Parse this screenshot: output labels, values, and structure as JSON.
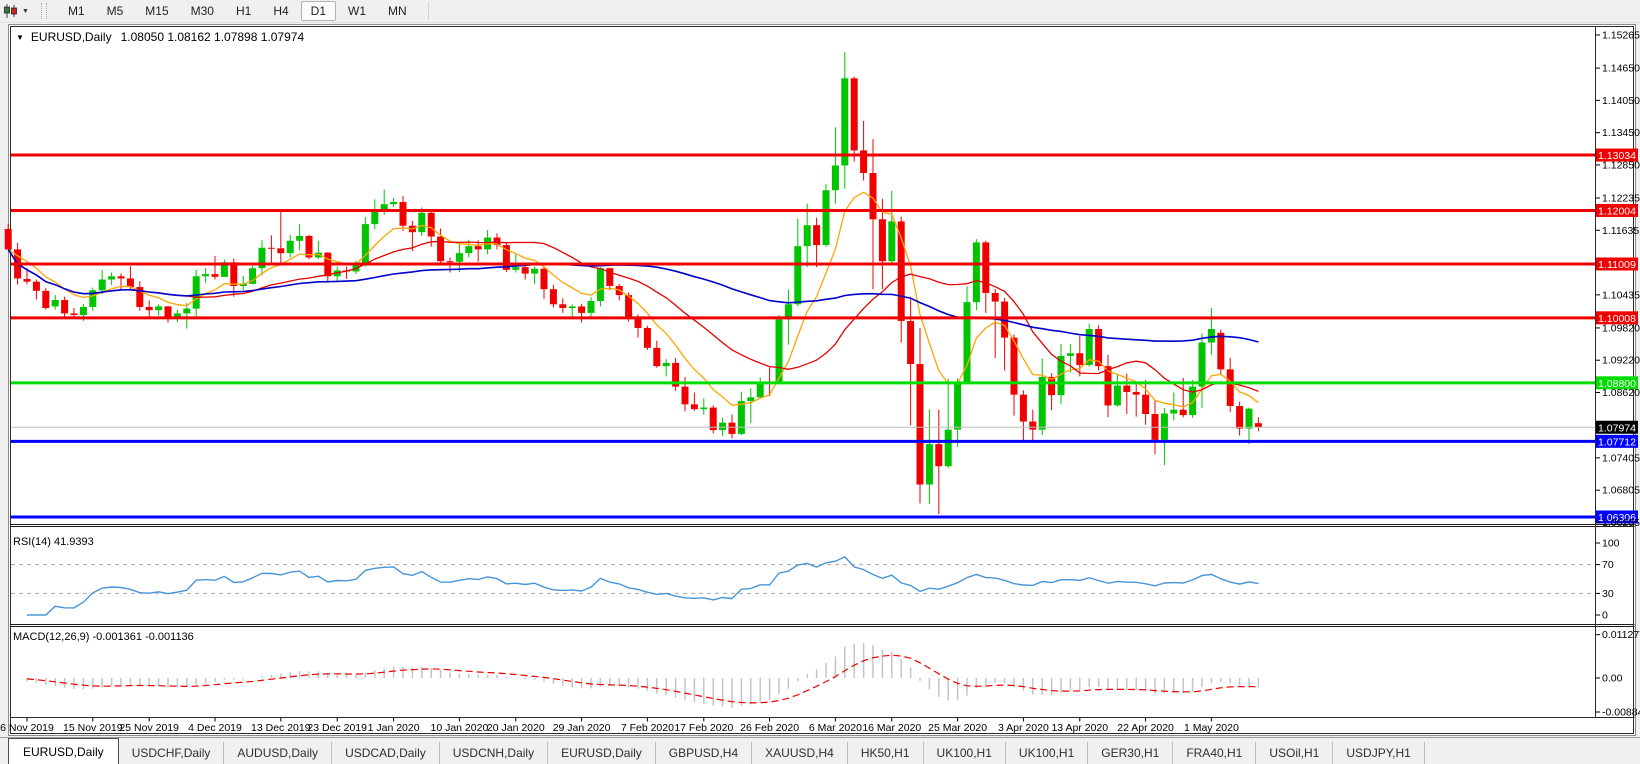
{
  "toolbar": {
    "timeframes": [
      "M1",
      "M5",
      "M15",
      "M30",
      "H1",
      "H4",
      "D1",
      "W1",
      "MN"
    ],
    "active_timeframe": "D1"
  },
  "window": {
    "symbol_period": "EURUSD,Daily",
    "ohlc_text": "1.08050 1.08162 1.07898 1.07974"
  },
  "chart_data": {
    "type": "candlestick",
    "symbol": "EURUSD",
    "timeframe": "Daily",
    "up_color": "#00C400",
    "down_color": "#F00000",
    "ylim": [
      1.06205,
      1.15265
    ],
    "y_ticks": [
      "1.15265",
      "1.14650",
      "1.14050",
      "1.13450",
      "1.12850",
      "1.12235",
      "1.11635",
      "1.10435",
      "1.09820",
      "1.09220",
      "1.08620",
      "1.07405",
      "1.06805",
      "1.06205"
    ],
    "price_levels": [
      {
        "price": 1.13034,
        "label": "1.13034",
        "color": "#F00000",
        "width": 3,
        "kind": "resistance"
      },
      {
        "price": 1.12004,
        "label": "1.12004",
        "color": "#F00000",
        "width": 3,
        "kind": "resistance"
      },
      {
        "price": 1.11009,
        "label": "1.11009",
        "color": "#F00000",
        "width": 3,
        "kind": "resistance"
      },
      {
        "price": 1.10008,
        "label": "1.10008",
        "color": "#F00000",
        "width": 3,
        "kind": "resistance"
      },
      {
        "price": 1.088,
        "label": "1.08800",
        "color": "#00DD00",
        "width": 3,
        "kind": "pivot"
      },
      {
        "price": 1.07712,
        "label": "1.07712",
        "color": "#0000FF",
        "width": 3,
        "kind": "support"
      },
      {
        "price": 1.06306,
        "label": "1.06306",
        "color": "#0000FF",
        "width": 3,
        "kind": "support"
      }
    ],
    "current_price": {
      "price": 1.07974,
      "label": "1.07974",
      "box_color": "#000000",
      "line_color": "#BDBDBD"
    },
    "moving_averages": [
      {
        "name": "fast",
        "method": "ema",
        "period": 8,
        "color": "#FFA500"
      },
      {
        "name": "medium",
        "method": "sma",
        "period": 20,
        "color": "#E60000"
      },
      {
        "name": "slow",
        "method": "sma",
        "period": 50,
        "color": "#0000CC"
      }
    ],
    "x_labels": [
      [
        "6 Nov 2019",
        2
      ],
      [
        "15 Nov 2019",
        9
      ],
      [
        "25 Nov 2019",
        15
      ],
      [
        "4 Dec 2019",
        22
      ],
      [
        "13 Dec 2019",
        29
      ],
      [
        "23 Dec 2019",
        35
      ],
      [
        "1 Jan 2020",
        41
      ],
      [
        "10 Jan 2020",
        48
      ],
      [
        "20 Jan 2020",
        54
      ],
      [
        "29 Jan 2020",
        61
      ],
      [
        "7 Feb 2020",
        68
      ],
      [
        "17 Feb 2020",
        74
      ],
      [
        "26 Feb 2020",
        81
      ],
      [
        "6 Mar 2020",
        88
      ],
      [
        "16 Mar 2020",
        94
      ],
      [
        "25 Mar 2020",
        101
      ],
      [
        "3 Apr 2020",
        108
      ],
      [
        "13 Apr 2020",
        114
      ],
      [
        "22 Apr 2020",
        121
      ],
      [
        "1 May 2020",
        128
      ]
    ],
    "candles": [
      [
        1.1166,
        1.1175,
        1.1128,
        1.1128
      ],
      [
        1.1128,
        1.114,
        1.1063,
        1.1074
      ],
      [
        1.1073,
        1.1093,
        1.1063,
        1.1068
      ],
      [
        1.1068,
        1.1072,
        1.1035,
        1.1051
      ],
      [
        1.1051,
        1.1056,
        1.1016,
        1.1019
      ],
      [
        1.1022,
        1.1043,
        1.1016,
        1.1034
      ],
      [
        1.1034,
        1.104,
        1.1002,
        1.1009
      ],
      [
        1.1009,
        1.1019,
        1.1,
        1.1006
      ],
      [
        1.1006,
        1.1027,
        1.0995,
        1.1021
      ],
      [
        1.1021,
        1.1057,
        1.1014,
        1.1052
      ],
      [
        1.1052,
        1.109,
        1.1045,
        1.1072
      ],
      [
        1.1072,
        1.1085,
        1.1062,
        1.1078
      ],
      [
        1.1078,
        1.1083,
        1.1052,
        1.1074
      ],
      [
        1.1074,
        1.1097,
        1.1052,
        1.1058
      ],
      [
        1.1058,
        1.1069,
        1.1014,
        1.1021
      ],
      [
        1.1021,
        1.1033,
        1.1003,
        1.1015
      ],
      [
        1.1015,
        1.1026,
        1.1005,
        1.1022
      ],
      [
        1.1022,
        1.1023,
        1.0992,
        1.1001
      ],
      [
        1.1001,
        1.1016,
        1.0993,
        1.1009
      ],
      [
        1.1009,
        1.1028,
        1.0981,
        1.1018
      ],
      [
        1.1018,
        1.109,
        1.1003,
        1.1078
      ],
      [
        1.1078,
        1.1093,
        1.1066,
        1.1082
      ],
      [
        1.1082,
        1.1116,
        1.1072,
        1.1077
      ],
      [
        1.1077,
        1.1109,
        1.1077,
        1.1104
      ],
      [
        1.1104,
        1.1111,
        1.104,
        1.106
      ],
      [
        1.106,
        1.1079,
        1.1052,
        1.1064
      ],
      [
        1.1064,
        1.1097,
        1.1063,
        1.1093
      ],
      [
        1.1093,
        1.1145,
        1.108,
        1.1131
      ],
      [
        1.1131,
        1.1154,
        1.1102,
        1.113
      ],
      [
        1.113,
        1.1199,
        1.1103,
        1.1121
      ],
      [
        1.1121,
        1.1155,
        1.1113,
        1.1144
      ],
      [
        1.1144,
        1.1175,
        1.1127,
        1.1153
      ],
      [
        1.1153,
        1.1155,
        1.111,
        1.1113
      ],
      [
        1.1113,
        1.1144,
        1.111,
        1.1122
      ],
      [
        1.1122,
        1.1123,
        1.1066,
        1.1078
      ],
      [
        1.1078,
        1.1096,
        1.1069,
        1.1089
      ],
      [
        1.1089,
        1.1096,
        1.1073,
        1.1087
      ],
      [
        1.1087,
        1.1107,
        1.1082,
        1.1098
      ],
      [
        1.1098,
        1.1188,
        1.1096,
        1.1175
      ],
      [
        1.1175,
        1.1221,
        1.1165,
        1.1199
      ],
      [
        1.1199,
        1.1239,
        1.1192,
        1.1212
      ],
      [
        1.1212,
        1.1224,
        1.1207,
        1.1216
      ],
      [
        1.1216,
        1.1227,
        1.1162,
        1.1172
      ],
      [
        1.1172,
        1.1181,
        1.1125,
        1.116
      ],
      [
        1.116,
        1.1206,
        1.1153,
        1.1196
      ],
      [
        1.1196,
        1.1199,
        1.1133,
        1.1152
      ],
      [
        1.1152,
        1.1167,
        1.1103,
        1.1106
      ],
      [
        1.1106,
        1.1113,
        1.1085,
        1.1105
      ],
      [
        1.1105,
        1.114,
        1.1086,
        1.1121
      ],
      [
        1.1121,
        1.1146,
        1.1113,
        1.1134
      ],
      [
        1.1134,
        1.1145,
        1.1105,
        1.1128
      ],
      [
        1.1128,
        1.1164,
        1.1119,
        1.115
      ],
      [
        1.115,
        1.1158,
        1.1128,
        1.1136
      ],
      [
        1.1136,
        1.1141,
        1.1086,
        1.109
      ],
      [
        1.109,
        1.1119,
        1.1085,
        1.1095
      ],
      [
        1.1095,
        1.1101,
        1.1072,
        1.1083
      ],
      [
        1.1083,
        1.1096,
        1.1064,
        1.1092
      ],
      [
        1.1092,
        1.1096,
        1.1036,
        1.1054
      ],
      [
        1.1054,
        1.1062,
        1.102,
        1.1026
      ],
      [
        1.1026,
        1.1037,
        1.101,
        1.1019
      ],
      [
        1.1019,
        1.1026,
        1.0998,
        1.1022
      ],
      [
        1.1022,
        1.1027,
        1.0992,
        1.101
      ],
      [
        1.101,
        1.1039,
        1.1003,
        1.1032
      ],
      [
        1.1032,
        1.1095,
        1.1022,
        1.1093
      ],
      [
        1.1093,
        1.1094,
        1.1052,
        1.106
      ],
      [
        1.106,
        1.1064,
        1.1033,
        1.1043
      ],
      [
        1.1043,
        1.1048,
        1.0994,
        1.1
      ],
      [
        1.1,
        1.1007,
        1.0964,
        1.0982
      ],
      [
        1.0982,
        1.0986,
        1.0941,
        1.0945
      ],
      [
        1.0945,
        1.0958,
        1.0908,
        1.0911
      ],
      [
        1.0911,
        1.0924,
        1.0892,
        1.0917
      ],
      [
        1.0917,
        1.0926,
        1.0865,
        1.0873
      ],
      [
        1.0873,
        1.0891,
        1.0827,
        1.084
      ],
      [
        1.084,
        1.0862,
        1.0828,
        1.0831
      ],
      [
        1.0831,
        1.0851,
        1.0821,
        1.0834
      ],
      [
        1.0834,
        1.0838,
        1.0786,
        1.0792
      ],
      [
        1.0792,
        1.0815,
        1.0781,
        1.0806
      ],
      [
        1.0806,
        1.0821,
        1.0777,
        1.0785
      ],
      [
        1.0785,
        1.0863,
        1.0783,
        1.0846
      ],
      [
        1.0846,
        1.087,
        1.0805,
        1.0853
      ],
      [
        1.0853,
        1.089,
        1.0851,
        1.0881
      ],
      [
        1.0881,
        1.0909,
        1.0855,
        1.088
      ],
      [
        1.088,
        1.1006,
        1.0879,
        1.0998
      ],
      [
        1.0998,
        1.1053,
        1.0951,
        1.1026
      ],
      [
        1.1026,
        1.1185,
        1.1022,
        1.1134
      ],
      [
        1.1134,
        1.1213,
        1.1095,
        1.1173
      ],
      [
        1.1173,
        1.1187,
        1.1095,
        1.1136
      ],
      [
        1.1136,
        1.1249,
        1.1133,
        1.1238
      ],
      [
        1.1238,
        1.1355,
        1.1213,
        1.1284
      ],
      [
        1.1284,
        1.1495,
        1.1241,
        1.1446
      ],
      [
        1.1446,
        1.1449,
        1.1291,
        1.1312
      ],
      [
        1.1312,
        1.1367,
        1.1256,
        1.127
      ],
      [
        1.127,
        1.1333,
        1.1054,
        1.1184
      ],
      [
        1.1184,
        1.1222,
        1.1054,
        1.1106
      ],
      [
        1.1106,
        1.1237,
        1.1101,
        1.118
      ],
      [
        1.118,
        1.1189,
        1.0955,
        1.0995
      ],
      [
        1.0995,
        1.104,
        1.0801,
        1.0915
      ],
      [
        1.0915,
        1.0982,
        1.0656,
        1.0691
      ],
      [
        1.0691,
        1.0831,
        1.0655,
        1.0766
      ],
      [
        1.0766,
        1.083,
        1.0636,
        1.0725
      ],
      [
        1.0725,
        1.0888,
        1.0722,
        1.0793
      ],
      [
        1.0793,
        1.0888,
        1.0761,
        1.0882
      ],
      [
        1.0882,
        1.106,
        1.0877,
        1.103
      ],
      [
        1.103,
        1.1147,
        1.1015,
        1.1141
      ],
      [
        1.1141,
        1.1144,
        1.101,
        1.1047
      ],
      [
        1.1047,
        1.1054,
        1.0926,
        1.1031
      ],
      [
        1.1031,
        1.1038,
        1.0903,
        1.0964
      ],
      [
        1.0964,
        1.097,
        1.0819,
        1.0858
      ],
      [
        1.0858,
        1.0866,
        1.0773,
        1.0808
      ],
      [
        1.0808,
        1.083,
        1.0768,
        1.0793
      ],
      [
        1.0793,
        1.0925,
        1.0783,
        1.0891
      ],
      [
        1.0891,
        1.0898,
        1.0829,
        1.0857
      ],
      [
        1.0857,
        1.0952,
        1.084,
        1.093
      ],
      [
        1.093,
        1.0952,
        1.0899,
        1.0935
      ],
      [
        1.0935,
        1.0967,
        1.0892,
        1.0913
      ],
      [
        1.0913,
        1.099,
        1.091,
        1.098
      ],
      [
        1.098,
        1.0987,
        1.0903,
        1.0911
      ],
      [
        1.0911,
        1.0932,
        1.0816,
        1.0838
      ],
      [
        1.0838,
        1.0897,
        1.0836,
        1.0875
      ],
      [
        1.0875,
        1.0897,
        1.0822,
        1.0863
      ],
      [
        1.0863,
        1.0879,
        1.0817,
        1.0858
      ],
      [
        1.0858,
        1.0885,
        1.0802,
        1.0822
      ],
      [
        1.0822,
        1.0848,
        1.0747,
        1.0774
      ],
      [
        1.0774,
        1.0833,
        1.0727,
        1.0823
      ],
      [
        1.0823,
        1.0862,
        1.081,
        1.083
      ],
      [
        1.083,
        1.0889,
        1.0816,
        1.082
      ],
      [
        1.082,
        1.0885,
        1.0815,
        1.0873
      ],
      [
        1.0873,
        1.0972,
        1.0833,
        1.0955
      ],
      [
        1.0955,
        1.1019,
        1.0932,
        1.098
      ],
      [
        1.0973,
        1.0979,
        1.0895,
        1.0905
      ],
      [
        1.0905,
        1.0926,
        1.0826,
        1.0837
      ],
      [
        1.0837,
        1.0845,
        1.0782,
        1.0795
      ],
      [
        1.0795,
        1.0834,
        1.0766,
        1.0832
      ],
      [
        1.0805,
        1.0816,
        1.079,
        1.0797
      ]
    ]
  },
  "rsi": {
    "label": "RSI(14) 41.9393",
    "period": 14,
    "value": 41.9393,
    "line_color": "#4695D9",
    "axis": [
      {
        "label": "100",
        "value": 100,
        "dashed": false
      },
      {
        "label": "70",
        "value": 70,
        "dashed": true
      },
      {
        "label": "30",
        "value": 30,
        "dashed": true
      },
      {
        "label": "0",
        "value": 0,
        "dashed": false
      }
    ]
  },
  "macd": {
    "label": "MACD(12,26,9) -0.001361 -0.001136",
    "fast": 12,
    "slow": 26,
    "signal": 9,
    "macd_value": -0.001361,
    "signal_value": -0.001136,
    "hist_color": "#C4C4C4",
    "signal_color": "#F00000",
    "axis": [
      {
        "label": "0.011277",
        "value": 0.011277
      },
      {
        "label": "0.00",
        "value": 0
      },
      {
        "label": "-0.008845",
        "value": -0.008845
      }
    ]
  },
  "tabs": {
    "active_index": 0,
    "items": [
      "EURUSD,Daily",
      "USDCHF,Daily",
      "AUDUSD,Daily",
      "USDCAD,Daily",
      "USDCNH,Daily",
      "EURUSD,Daily",
      "GBPUSD,H4",
      "XAUUSD,H4",
      "HK50,H1",
      "UK100,H1",
      "UK100,H1",
      "GER30,H1",
      "FRA40,H1",
      "USOil,H1",
      "USDJPY,H1"
    ]
  }
}
